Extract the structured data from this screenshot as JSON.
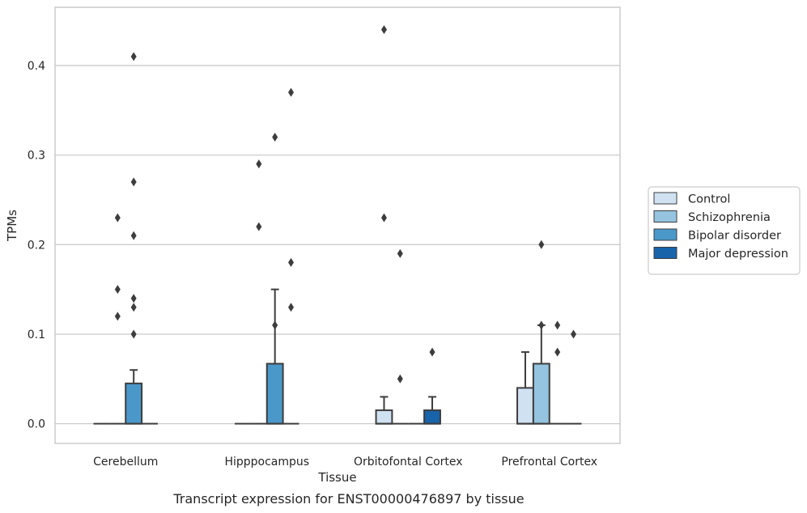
{
  "chart_data": {
    "type": "box",
    "title": "Transcript expression for ENST00000476897 by tissue",
    "xlabel": "Tissue",
    "ylabel": "TPMs",
    "ylim": [
      -0.022,
      0.465
    ],
    "yticks": [
      0.0,
      0.1,
      0.2,
      0.3,
      0.4
    ],
    "ytick_labels": [
      "0.0",
      "0.1",
      "0.2",
      "0.3",
      "0.4"
    ],
    "grid": "horizontal",
    "legend_position": "right",
    "categories": [
      "Cerebellum",
      "Hipppocampus",
      "Orbitofontal Cortex",
      "Prefrontal Cortex"
    ],
    "series": [
      {
        "name": "Control",
        "color": "#d0e1f2",
        "boxes": [
          {
            "q1": 0,
            "median": 0,
            "q3": 0,
            "whisker_low": 0,
            "whisker_high": 0,
            "outliers": []
          },
          {
            "q1": 0,
            "median": 0,
            "q3": 0,
            "whisker_low": 0,
            "whisker_high": 0,
            "outliers": []
          },
          {
            "q1": 0,
            "median": 0,
            "q3": 0.015,
            "whisker_low": 0,
            "whisker_high": 0.03,
            "outliers": [
              0.44,
              0.23
            ]
          },
          {
            "q1": 0,
            "median": 0,
            "q3": 0.04,
            "whisker_low": 0,
            "whisker_high": 0.08,
            "outliers": []
          }
        ]
      },
      {
        "name": "Schizophrenia",
        "color": "#94c4df",
        "boxes": [
          {
            "q1": 0,
            "median": 0,
            "q3": 0,
            "whisker_low": 0,
            "whisker_high": 0,
            "outliers": [
              0.23,
              0.15,
              0.12
            ]
          },
          {
            "q1": 0,
            "median": 0,
            "q3": 0,
            "whisker_low": 0,
            "whisker_high": 0,
            "outliers": [
              0.29,
              0.22
            ]
          },
          {
            "q1": 0,
            "median": 0,
            "q3": 0,
            "whisker_low": 0,
            "whisker_high": 0,
            "outliers": [
              0.19,
              0.05
            ]
          },
          {
            "q1": 0,
            "median": 0,
            "q3": 0.067,
            "whisker_low": 0,
            "whisker_high": 0.11,
            "outliers": [
              0.2,
              0.11
            ]
          }
        ]
      },
      {
        "name": "Bipolar disorder",
        "color": "#4a98c9",
        "boxes": [
          {
            "q1": 0,
            "median": 0,
            "q3": 0.045,
            "whisker_low": 0,
            "whisker_high": 0.06,
            "outliers": [
              0.41,
              0.27,
              0.21,
              0.14,
              0.13,
              0.1
            ]
          },
          {
            "q1": 0,
            "median": 0,
            "q3": 0.067,
            "whisker_low": 0,
            "whisker_high": 0.15,
            "outliers": [
              0.32,
              0.11
            ]
          },
          {
            "q1": 0,
            "median": 0,
            "q3": 0,
            "whisker_low": 0,
            "whisker_high": 0,
            "outliers": []
          },
          {
            "q1": 0,
            "median": 0,
            "q3": 0,
            "whisker_low": 0,
            "whisker_high": 0,
            "outliers": [
              0.11,
              0.08
            ]
          }
        ]
      },
      {
        "name": "Major depression",
        "color": "#1764ab",
        "boxes": [
          {
            "q1": 0,
            "median": 0,
            "q3": 0,
            "whisker_low": 0,
            "whisker_high": 0,
            "outliers": []
          },
          {
            "q1": 0,
            "median": 0,
            "q3": 0,
            "whisker_low": 0,
            "whisker_high": 0,
            "outliers": [
              0.37,
              0.18,
              0.13
            ]
          },
          {
            "q1": 0,
            "median": 0,
            "q3": 0.015,
            "whisker_low": 0,
            "whisker_high": 0.03,
            "outliers": [
              0.08
            ]
          },
          {
            "q1": 0,
            "median": 0,
            "q3": 0,
            "whisker_low": 0,
            "whisker_high": 0,
            "outliers": [
              0.1
            ]
          }
        ]
      }
    ]
  }
}
